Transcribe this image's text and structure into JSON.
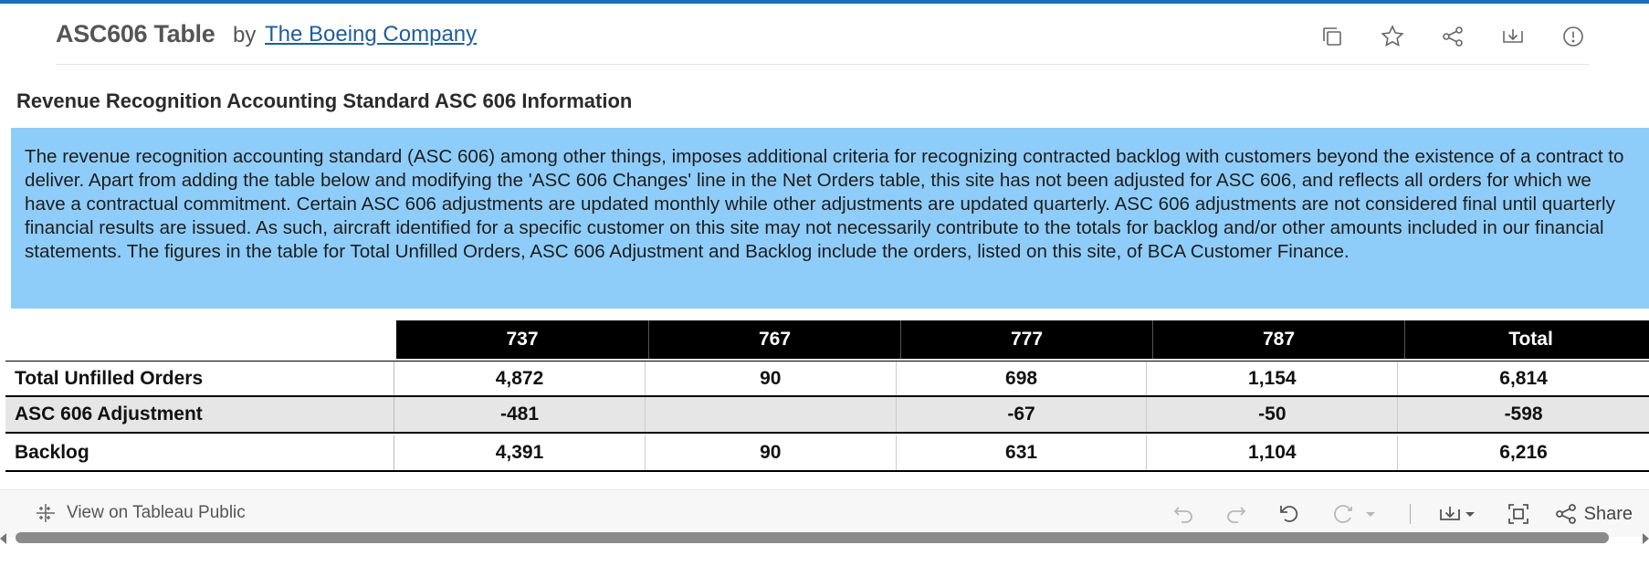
{
  "header": {
    "title": "ASC606 Table",
    "by": "by",
    "author": "The Boeing Company",
    "icons": [
      "copy-icon",
      "star-icon",
      "share-icon",
      "download-icon",
      "info-icon"
    ]
  },
  "section": {
    "title": "Revenue Recognition Accounting Standard ASC 606 Information",
    "info_text": "The revenue recognition accounting standard (ASC 606) among other things, imposes additional criteria for recognizing contracted backlog with customers beyond the existence of a contract to deliver. Apart from adding the table below and modifying the 'ASC 606 Changes' line in the Net Orders table, this site has not been adjusted for ASC 606, and reflects all orders for which we have a contractual commitment. Certain ASC 606 adjustments are updated monthly while other adjustments are updated quarterly. ASC 606 adjustments are not considered final until quarterly financial results are issued. As such, aircraft identified for a specific customer on this site may not necessarily contribute to the totals for backlog and/or other amounts included in our financial statements. The figures in the table for Total Unfilled Orders, ASC 606 Adjustment and Backlog include the orders, listed on this site, of BCA Customer Finance.",
    "info_bg": "#8ecdfa"
  },
  "table": {
    "columns": [
      "737",
      "767",
      "777",
      "787",
      "Total"
    ],
    "rows": [
      {
        "label": "Total Unfilled Orders",
        "values": [
          "4,872",
          "90",
          "698",
          "1,154",
          "6,814"
        ]
      },
      {
        "label": "ASC 606 Adjustment",
        "values": [
          "-481",
          "",
          "-67",
          "-50",
          "-598"
        ]
      },
      {
        "label": "Backlog",
        "values": [
          "4,391",
          "90",
          "631",
          "1,104",
          "6,216"
        ]
      }
    ]
  },
  "toolbar": {
    "view_label": "View on Tableau Public",
    "share_label": "Share"
  },
  "colors": {
    "accent": "#1f6db5",
    "link": "#1f5e99",
    "header_cell": "#000000"
  }
}
